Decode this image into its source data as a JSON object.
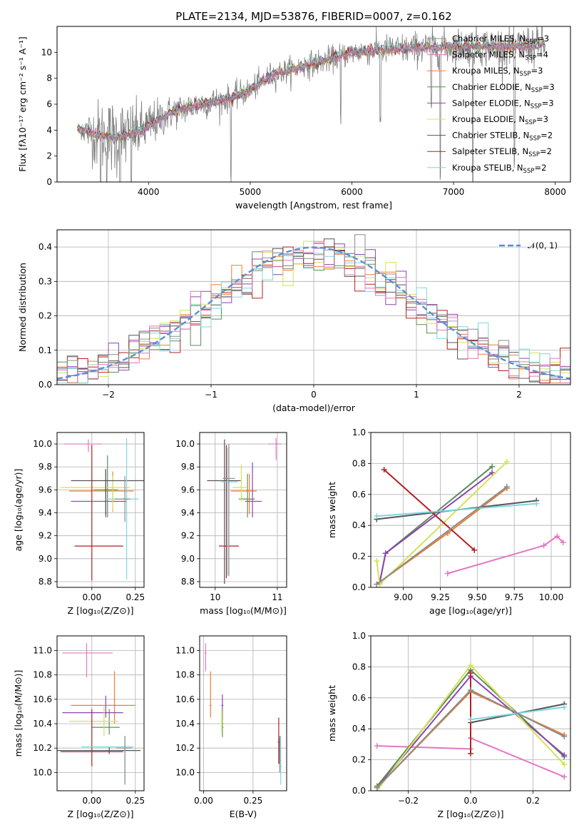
{
  "figure": {
    "title": "PLATE=2134, MJD=53876, FIBERID=0007, z=0.162"
  },
  "models": [
    {
      "name": "Chabrier MILES",
      "nssp": "3",
      "color": "#8c8c8c"
    },
    {
      "name": "Salpeter MILES",
      "nssp": "4",
      "color": "#e377c2"
    },
    {
      "name": "Kroupa MILES",
      "nssp": "3",
      "color": "#ed7d31"
    },
    {
      "name": "Chabrier ELODIE",
      "nssp": "3",
      "color": "#5a8f5a"
    },
    {
      "name": "Salpeter ELODIE",
      "nssp": "3",
      "color": "#8e44ad"
    },
    {
      "name": "Kroupa ELODIE",
      "nssp": "3",
      "color": "#d4e157"
    },
    {
      "name": "Chabrier STELIB",
      "nssp": "2",
      "color": "#555555"
    },
    {
      "name": "Salpeter STELIB",
      "nssp": "2",
      "color": "#b22222"
    },
    {
      "name": "Kroupa STELIB",
      "nssp": "2",
      "color": "#7fd6e0"
    }
  ],
  "chart_data": [
    {
      "id": "spectrum",
      "type": "line",
      "xlabel": "wavelength [Angstrom, rest frame]",
      "ylabel": "Flux [fλ10⁻¹⁷ erg cm⁻² s⁻¹ A⁻¹]",
      "xlim": [
        3100,
        8150
      ],
      "ylim": [
        0,
        12
      ],
      "xticks": [
        "4000",
        "5000",
        "6000",
        "7000",
        "8000"
      ],
      "yticks": [
        "0",
        "2",
        "4",
        "6",
        "8",
        "10"
      ],
      "continuum": [
        [
          3300,
          4.2
        ],
        [
          3500,
          3.6
        ],
        [
          3700,
          3.4
        ],
        [
          3900,
          3.9
        ],
        [
          4000,
          4.3
        ],
        [
          4200,
          5.3
        ],
        [
          4500,
          6.0
        ],
        [
          4800,
          6.4
        ],
        [
          5000,
          7.1
        ],
        [
          5200,
          8.2
        ],
        [
          5500,
          8.9
        ],
        [
          5800,
          9.5
        ],
        [
          6000,
          10.0
        ],
        [
          6300,
          10.2
        ],
        [
          6600,
          10.3
        ],
        [
          6900,
          10.4
        ],
        [
          7200,
          10.5
        ],
        [
          7500,
          10.4
        ],
        [
          7900,
          10.6
        ]
      ],
      "noise_amplitude": [
        [
          3300,
          0.3
        ],
        [
          3500,
          2.5
        ],
        [
          3700,
          2.8
        ],
        [
          3900,
          2.0
        ],
        [
          4200,
          1.2
        ],
        [
          5000,
          0.9
        ],
        [
          6000,
          0.9
        ],
        [
          7000,
          1.3
        ],
        [
          7900,
          1.5
        ]
      ],
      "absorption_lines": [
        [
          3530,
          3.8
        ],
        [
          3590,
          3.0
        ],
        [
          3720,
          3.4
        ],
        [
          3830,
          3.6
        ],
        [
          4810,
          6.0
        ],
        [
          5890,
          5.0
        ],
        [
          6280,
          5.3
        ],
        [
          6780,
          4.0
        ],
        [
          6870,
          10.0
        ],
        [
          7190,
          10.5
        ],
        [
          7600,
          9.0
        ]
      ]
    },
    {
      "id": "residuals",
      "type": "histogram",
      "xlabel": "(data-model)/error",
      "ylabel": "Normed distribution",
      "xlim": [
        -2.5,
        2.5
      ],
      "ylim": [
        0,
        0.45
      ],
      "xticks": [
        "−2",
        "−1",
        "0",
        "1",
        "2"
      ],
      "yticks": [
        "0.0",
        "0.1",
        "0.2",
        "0.3",
        "0.4"
      ],
      "bin_width": 0.1,
      "reference_label": "𝒩(0, 1)",
      "reference_color": "#5b8fd6"
    },
    {
      "id": "age-Z",
      "type": "errorbar",
      "xlabel": "Z [log₁₀(Z/Z⊙)]",
      "ylabel": "age  [log₁₀(age/yr)]",
      "xlim": [
        -0.2,
        0.3
      ],
      "ylim": [
        8.75,
        10.1
      ],
      "xticks": [
        "0.00",
        "0.25"
      ],
      "yticks": [
        "8.8",
        "9.0",
        "9.2",
        "9.4",
        "9.6",
        "9.8",
        "10.0"
      ],
      "points": [
        {
          "model": 1,
          "x": -0.02,
          "y": 10.0,
          "xerr": [
            0.14,
            0.08
          ],
          "yerr": [
            0.07,
            0.04
          ]
        },
        {
          "model": 2,
          "x": 0.12,
          "y": 9.59,
          "xerr": [
            0.25,
            0.12
          ],
          "yerr": [
            0.18,
            0.17
          ]
        },
        {
          "model": 3,
          "x": 0.09,
          "y": 9.6,
          "xerr": [
            0.08,
            0.06
          ],
          "yerr": [
            0.24,
            0.3
          ]
        },
        {
          "model": 4,
          "x": 0.08,
          "y": 9.5,
          "xerr": [
            0.2,
            0.12
          ],
          "yerr": [
            0.14,
            0.28
          ]
        },
        {
          "model": 5,
          "x": 0.12,
          "y": 9.62,
          "xerr": [
            0.3,
            0.1
          ],
          "yerr": [
            0.2,
            0.1
          ]
        },
        {
          "model": 6,
          "x": 0.08,
          "y": 9.68,
          "xerr": [
            0.2,
            0.22
          ],
          "yerr": [
            0.3,
            0.1
          ]
        },
        {
          "model": 7,
          "x": 0.0,
          "y": 9.11,
          "xerr": [
            0.1,
            0.18
          ],
          "yerr": [
            0.3,
            0.88
          ]
        },
        {
          "model": 8,
          "x": 0.2,
          "y": 9.52,
          "xerr": [
            0.12,
            0.07
          ],
          "yerr": [
            0.7,
            0.53
          ]
        },
        {
          "model": 0,
          "x": 0.19,
          "y": 9.52,
          "xerr": [
            0.06,
            0.03
          ],
          "yerr": [
            0.2,
            0.2
          ]
        }
      ]
    },
    {
      "id": "age-mass",
      "type": "errorbar",
      "xlabel": "mass [log₁₀(M/M⊙)]",
      "ylabel": "",
      "xlim": [
        9.75,
        11.15
      ],
      "ylim": [
        8.75,
        10.1
      ],
      "xticks": [
        "10",
        "11"
      ],
      "yticks": [
        "8.8",
        "9.0",
        "9.2",
        "9.4",
        "9.6",
        "9.8",
        "10.0"
      ],
      "points": [
        {
          "model": 1,
          "x": 10.98,
          "y": 10.0,
          "xerr": [
            0.12,
            0.08
          ],
          "yerr": [
            0.14,
            0.05
          ]
        },
        {
          "model": 2,
          "x": 10.55,
          "y": 9.59,
          "xerr": [
            0.3,
            0.12
          ],
          "yerr": [
            0.2,
            0.15
          ]
        },
        {
          "model": 3,
          "x": 10.52,
          "y": 9.52,
          "xerr": [
            0.14,
            0.12
          ],
          "yerr": [
            0.16,
            0.22
          ]
        },
        {
          "model": 4,
          "x": 10.6,
          "y": 9.5,
          "xerr": [
            0.12,
            0.15
          ],
          "yerr": [
            0.14,
            0.34
          ]
        },
        {
          "model": 5,
          "x": 10.42,
          "y": 9.62,
          "xerr": [
            0.14,
            0.1
          ],
          "yerr": [
            0.12,
            0.2
          ]
        },
        {
          "model": 6,
          "x": 10.15,
          "y": 9.68,
          "xerr": [
            0.28,
            0.26
          ],
          "yerr": [
            0.9,
            0.36
          ]
        },
        {
          "model": 7,
          "x": 10.18,
          "y": 9.11,
          "xerr": [
            0.12,
            0.2
          ],
          "yerr": [
            0.28,
            0.88
          ]
        },
        {
          "model": 8,
          "x": 10.2,
          "y": 9.67,
          "xerr": [
            0.1,
            0.16
          ],
          "yerr": [
            0.82,
            0.3
          ]
        },
        {
          "model": 0,
          "x": 10.22,
          "y": 9.7,
          "xerr": [
            0.1,
            0.1
          ],
          "yerr": [
            0.85,
            0.3
          ]
        }
      ]
    },
    {
      "id": "weight-age",
      "type": "line",
      "xlabel": "age  [log₁₀(age/yr)]",
      "ylabel": "mass weight",
      "xlim": [
        8.78,
        10.13
      ],
      "ylim": [
        0,
        1.0
      ],
      "xticks": [
        "9.00",
        "9.25",
        "9.50",
        "9.75",
        "10.00"
      ],
      "yticks": [
        "0.0",
        "0.2",
        "0.4",
        "0.6",
        "0.8",
        "1.0"
      ],
      "series": [
        {
          "model": 1,
          "points": [
            [
              9.3,
              0.09
            ],
            [
              9.95,
              0.27
            ],
            [
              10.04,
              0.33
            ],
            [
              10.08,
              0.29
            ]
          ]
        },
        {
          "model": 2,
          "points": [
            [
              8.82,
              0.02
            ],
            [
              9.3,
              0.35
            ],
            [
              9.7,
              0.64
            ]
          ]
        },
        {
          "model": 3,
          "points": [
            [
              8.84,
              0.03
            ],
            [
              8.88,
              0.22
            ],
            [
              9.6,
              0.78
            ]
          ]
        },
        {
          "model": 4,
          "points": [
            [
              8.84,
              0.03
            ],
            [
              8.88,
              0.22
            ],
            [
              9.6,
              0.74
            ]
          ]
        },
        {
          "model": 5,
          "points": [
            [
              8.82,
              0.17
            ],
            [
              8.84,
              0.02
            ],
            [
              9.7,
              0.81
            ]
          ]
        },
        {
          "model": 6,
          "points": [
            [
              8.82,
              0.44
            ],
            [
              9.9,
              0.56
            ]
          ]
        },
        {
          "model": 7,
          "points": [
            [
              8.87,
              0.76
            ],
            [
              9.48,
              0.24
            ]
          ]
        },
        {
          "model": 8,
          "points": [
            [
              8.82,
              0.46
            ],
            [
              9.9,
              0.54
            ]
          ]
        },
        {
          "model": 0,
          "points": [
            [
              8.82,
              0.02
            ],
            [
              9.7,
              0.65
            ]
          ]
        }
      ]
    },
    {
      "id": "mass-Z",
      "type": "errorbar",
      "xlabel": "Z [log₁₀(Z/Z⊙)]",
      "ylabel": "mass [log₁₀(M/M⊙)]",
      "xlim": [
        -0.2,
        0.3
      ],
      "ylim": [
        9.85,
        11.12
      ],
      "xticks": [
        "0.00",
        "0.25"
      ],
      "yticks": [
        "10.0",
        "10.2",
        "10.4",
        "10.6",
        "10.8",
        "11.0"
      ],
      "points": [
        {
          "model": 1,
          "x": -0.03,
          "y": 10.98,
          "xerr": [
            0.14,
            0.15
          ],
          "yerr": [
            0.2,
            0.08
          ]
        },
        {
          "model": 2,
          "x": 0.13,
          "y": 10.55,
          "xerr": [
            0.25,
            0.12
          ],
          "yerr": [
            0.15,
            0.28
          ]
        },
        {
          "model": 3,
          "x": 0.1,
          "y": 10.37,
          "xerr": [
            0.1,
            0.06
          ],
          "yerr": [
            0.06,
            0.15
          ]
        },
        {
          "model": 4,
          "x": 0.08,
          "y": 10.49,
          "xerr": [
            0.25,
            0.1
          ],
          "yerr": [
            0.04,
            0.14
          ]
        },
        {
          "model": 5,
          "x": 0.07,
          "y": 10.42,
          "xerr": [
            0.2,
            0.08
          ],
          "yerr": [
            0.12,
            0.12
          ]
        },
        {
          "model": 6,
          "x": 0.1,
          "y": 10.18,
          "xerr": [
            0.3,
            0.18
          ],
          "yerr": [
            0.03,
            0.03
          ]
        },
        {
          "model": 7,
          "x": 0.0,
          "y": 10.17,
          "xerr": [
            0.18,
            0.18
          ],
          "yerr": [
            0.12,
            0.35
          ]
        },
        {
          "model": 8,
          "x": 0.19,
          "y": 10.21,
          "xerr": [
            0.25,
            0.05
          ],
          "yerr": [
            0.3,
            0.09
          ]
        },
        {
          "model": 0,
          "x": 0.19,
          "y": 10.2,
          "xerr": [
            0.05,
            0.04
          ],
          "yerr": [
            0.3,
            0.1
          ]
        }
      ]
    },
    {
      "id": "mass-ebv",
      "type": "errorbar",
      "xlabel": "E(B-V)",
      "ylabel": "",
      "xlim": [
        -0.02,
        0.42
      ],
      "ylim": [
        9.85,
        11.12
      ],
      "xticks": [
        "0.00",
        "0.25"
      ],
      "yticks": [
        "10.0",
        "10.2",
        "10.4",
        "10.6",
        "10.8",
        "11.0"
      ],
      "points": [
        {
          "model": 1,
          "x": 0.01,
          "y": 10.98,
          "xerr": [
            0.005,
            0.005
          ],
          "yerr": [
            0.15,
            0.08
          ]
        },
        {
          "model": 2,
          "x": 0.035,
          "y": 10.55,
          "xerr": [
            0.005,
            0.005
          ],
          "yerr": [
            0.1,
            0.28
          ]
        },
        {
          "model": 3,
          "x": 0.095,
          "y": 10.37,
          "xerr": [
            0.005,
            0.005
          ],
          "yerr": [
            0.08,
            0.14
          ]
        },
        {
          "model": 4,
          "x": 0.095,
          "y": 10.55,
          "xerr": [
            0.005,
            0.005
          ],
          "yerr": [
            0.05,
            0.09
          ]
        },
        {
          "model": 5,
          "x": 0.092,
          "y": 10.42,
          "xerr": [
            0.005,
            0.005
          ],
          "yerr": [
            0.1,
            0.1
          ]
        },
        {
          "model": 6,
          "x": 0.385,
          "y": 10.18,
          "xerr": [
            0.005,
            0.005
          ],
          "yerr": [
            0.1,
            0.1
          ]
        },
        {
          "model": 7,
          "x": 0.38,
          "y": 10.25,
          "xerr": [
            0.005,
            0.005
          ],
          "yerr": [
            0.18,
            0.2
          ]
        },
        {
          "model": 8,
          "x": 0.39,
          "y": 10.05,
          "xerr": [
            0.005,
            0.005
          ],
          "yerr": [
            0.15,
            0.25
          ]
        },
        {
          "model": 0,
          "x": 0.385,
          "y": 10.1,
          "xerr": [
            0.005,
            0.005
          ],
          "yerr": [
            0.1,
            0.2
          ]
        }
      ]
    },
    {
      "id": "weight-Z",
      "type": "line",
      "xlabel": "Z [log₁₀(Z/Z⊙)]",
      "ylabel": "mass weight",
      "xlim": [
        -0.32,
        0.32
      ],
      "ylim": [
        0,
        1.0
      ],
      "xticks": [
        "−0.2",
        "0.0",
        "0.2"
      ],
      "yticks": [
        "0.0",
        "0.2",
        "0.4",
        "0.6",
        "0.8",
        "1.0"
      ],
      "series": [
        {
          "model": 1,
          "points": [
            [
              -0.3,
              0.29
            ],
            [
              0.0,
              0.27
            ],
            [
              0.0,
              0.34
            ],
            [
              0.3,
              0.09
            ]
          ]
        },
        {
          "model": 2,
          "points": [
            [
              -0.3,
              0.02
            ],
            [
              0.0,
              0.64
            ],
            [
              0.3,
              0.36
            ]
          ]
        },
        {
          "model": 3,
          "points": [
            [
              -0.3,
              0.03
            ],
            [
              0.0,
              0.78
            ],
            [
              0.3,
              0.22
            ]
          ]
        },
        {
          "model": 4,
          "points": [
            [
              -0.3,
              0.02
            ],
            [
              0.0,
              0.74
            ],
            [
              0.3,
              0.23
            ]
          ]
        },
        {
          "model": 5,
          "points": [
            [
              -0.3,
              0.0
            ],
            [
              0.0,
              0.81
            ],
            [
              0.3,
              0.17
            ]
          ]
        },
        {
          "model": 6,
          "points": [
            [
              0.0,
              0.44
            ],
            [
              0.3,
              0.56
            ]
          ]
        },
        {
          "model": 7,
          "points": [
            [
              0.0,
              0.76
            ],
            [
              0.0,
              0.24
            ]
          ]
        },
        {
          "model": 8,
          "points": [
            [
              0.0,
              0.46
            ],
            [
              0.3,
              0.54
            ]
          ]
        },
        {
          "model": 0,
          "points": [
            [
              -0.3,
              0.02
            ],
            [
              0.0,
              0.65
            ],
            [
              0.3,
              0.35
            ]
          ]
        }
      ]
    }
  ]
}
